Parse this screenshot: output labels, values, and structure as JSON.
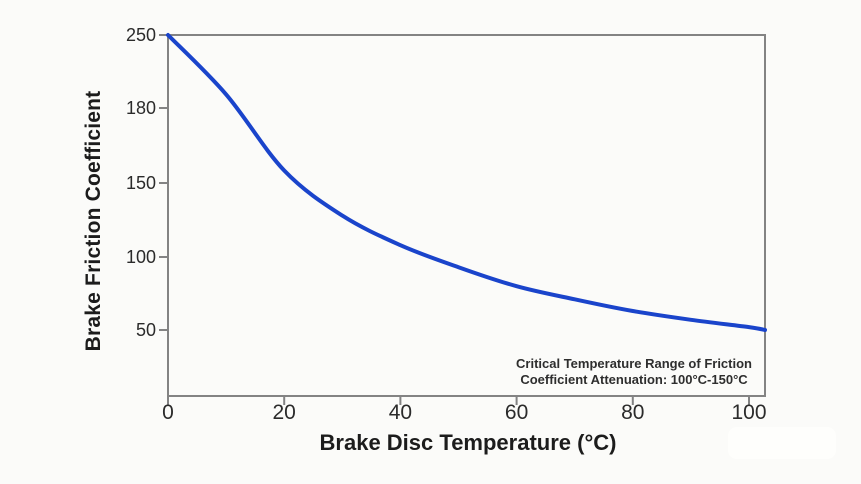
{
  "chart_data": {
    "type": "line",
    "title": "",
    "xlabel": "Brake Disc Temperature (°C)",
    "ylabel": "Brake Friction Coefficient",
    "x_ticks": [
      "0",
      "20",
      "40",
      "60",
      "80",
      "100"
    ],
    "y_ticks": [
      "250",
      "180",
      "150",
      "100",
      "50"
    ],
    "y_axis_note": "y tick labels are evenly spaced on the axis despite unequal numeric intervals",
    "xlim": [
      0,
      103
    ],
    "grid": false,
    "legend": "none",
    "series": [
      {
        "name": "friction-coefficient-curve",
        "points": [
          [
            0,
            250
          ],
          [
            10,
            193
          ],
          [
            20,
            155
          ],
          [
            30,
            128
          ],
          [
            40,
            108
          ],
          [
            50,
            93
          ],
          [
            60,
            80
          ],
          [
            70,
            71
          ],
          [
            80,
            63
          ],
          [
            90,
            57
          ],
          [
            100,
            52
          ],
          [
            103,
            50
          ]
        ]
      }
    ],
    "annotation": {
      "line1": "Critical Temperature Range of Friction",
      "line2": "Coefficient Attenuation: 100°C-150°C"
    },
    "colors": {
      "line": "#1a44cb",
      "axis": "#838383",
      "tick_text": "#2b2b2b",
      "label_text": "#1c1c1c",
      "background": "#fbfbf9"
    }
  }
}
